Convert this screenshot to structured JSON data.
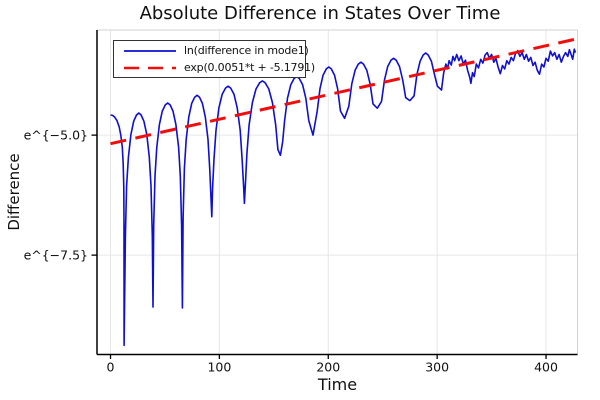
{
  "chart_data": {
    "type": "line",
    "title": "Absolute Difference in States Over Time",
    "xlabel": "Time",
    "ylabel": "Difference",
    "grid": true,
    "legend_position": "top-left",
    "xlim": [
      -12.4,
      428.9
    ],
    "ylim": [
      -9.57,
      -2.81
    ],
    "xticks": {
      "values": [
        0,
        100,
        200,
        300,
        400
      ],
      "labels": [
        "0",
        "100",
        "200",
        "300",
        "400"
      ]
    },
    "yticks": {
      "values": [
        -5.0,
        -7.5
      ],
      "labels": [
        "e^{−5.0}",
        "e^{−7.5}"
      ]
    },
    "colors": {
      "series1": "#0f0fd2",
      "series2": "#f20d0d",
      "grid": "#e6e6e6",
      "frame": "#d2d2d2",
      "spine": "#000000",
      "text": "#111111"
    },
    "series": [
      {
        "name": "ln(difference in mode1)",
        "color": "#0f0fd2",
        "style": "solid",
        "width": 1.6,
        "points": [
          [
            0,
            -4.58
          ],
          [
            2,
            -4.59
          ],
          [
            4,
            -4.63
          ],
          [
            6,
            -4.7
          ],
          [
            8,
            -4.83
          ],
          [
            9.5,
            -5.0
          ],
          [
            10.8,
            -5.25
          ],
          [
            11.7,
            -5.6
          ],
          [
            12.2,
            -6.1
          ],
          [
            12.4,
            -6.9
          ],
          [
            12.5,
            -9.38
          ],
          [
            13.7,
            -7.09
          ],
          [
            14.8,
            -6.06
          ],
          [
            16.4,
            -5.46
          ],
          [
            18.7,
            -4.99
          ],
          [
            21.3,
            -4.71
          ],
          [
            23.9,
            -4.58
          ],
          [
            26,
            -4.54
          ],
          [
            28.1,
            -4.58
          ],
          [
            30.7,
            -4.71
          ],
          [
            33.3,
            -4.99
          ],
          [
            35.6,
            -5.46
          ],
          [
            37.2,
            -6.06
          ],
          [
            38.4,
            -7.09
          ],
          [
            39,
            -8.58
          ],
          [
            39.7,
            -6.88
          ],
          [
            40.9,
            -5.85
          ],
          [
            42.5,
            -5.25
          ],
          [
            44.9,
            -4.78
          ],
          [
            47.6,
            -4.5
          ],
          [
            50.3,
            -4.37
          ],
          [
            52.5,
            -4.33
          ],
          [
            54.7,
            -4.37
          ],
          [
            57.4,
            -4.5
          ],
          [
            60.1,
            -4.78
          ],
          [
            62.5,
            -5.25
          ],
          [
            64.1,
            -5.85
          ],
          [
            65.3,
            -6.88
          ],
          [
            66,
            -8.6
          ],
          [
            66.7,
            -6.72
          ],
          [
            67.9,
            -5.69
          ],
          [
            69.5,
            -5.09
          ],
          [
            71.9,
            -4.62
          ],
          [
            74.6,
            -4.34
          ],
          [
            77.3,
            -4.21
          ],
          [
            79.5,
            -4.17
          ],
          [
            81.7,
            -4.21
          ],
          [
            84.4,
            -4.34
          ],
          [
            87.1,
            -4.62
          ],
          [
            89.5,
            -5.09
          ],
          [
            91.1,
            -5.69
          ],
          [
            93,
            -6.7
          ],
          [
            93.8,
            -6.1
          ],
          [
            95.1,
            -5.5
          ],
          [
            96.9,
            -4.9
          ],
          [
            99.6,
            -4.43
          ],
          [
            102.6,
            -4.15
          ],
          [
            105.6,
            -4.02
          ],
          [
            108,
            -3.98
          ],
          [
            110.4,
            -4.02
          ],
          [
            113.4,
            -4.15
          ],
          [
            116.4,
            -4.43
          ],
          [
            119.1,
            -4.9
          ],
          [
            120.9,
            -5.5
          ],
          [
            122.3,
            -6.1
          ],
          [
            123,
            -6.42
          ],
          [
            124.2,
            -5.9
          ],
          [
            125.3,
            -5.39
          ],
          [
            127.3,
            -4.79
          ],
          [
            130.3,
            -4.32
          ],
          [
            133.6,
            -4.04
          ],
          [
            136.9,
            -3.91
          ],
          [
            139.5,
            -3.87
          ],
          [
            142.1,
            -3.91
          ],
          [
            145.4,
            -4.04
          ],
          [
            148.7,
            -4.32
          ],
          [
            151.7,
            -4.79
          ],
          [
            153.7,
            -5.3
          ],
          [
            156,
            -5.42
          ],
          [
            158.1,
            -5.15
          ],
          [
            159.9,
            -4.7
          ],
          [
            162.6,
            -4.23
          ],
          [
            165.6,
            -3.95
          ],
          [
            168.6,
            -3.82
          ],
          [
            171,
            -3.78
          ],
          [
            173.4,
            -3.82
          ],
          [
            176.4,
            -3.95
          ],
          [
            179.4,
            -4.23
          ],
          [
            182.1,
            -4.7
          ],
          [
            186,
            -5.0
          ],
          [
            189.8,
            -4.5
          ],
          [
            192.4,
            -4.03
          ],
          [
            195.3,
            -3.75
          ],
          [
            198.2,
            -3.62
          ],
          [
            200.5,
            -3.58
          ],
          [
            202.8,
            -3.62
          ],
          [
            205.7,
            -3.75
          ],
          [
            208.6,
            -4.03
          ],
          [
            211.2,
            -4.5
          ],
          [
            215,
            -4.65
          ],
          [
            218.9,
            -4.4
          ],
          [
            221.6,
            -3.93
          ],
          [
            224.6,
            -3.65
          ],
          [
            227.6,
            -3.52
          ],
          [
            230,
            -3.48
          ],
          [
            232.4,
            -3.52
          ],
          [
            235.4,
            -3.65
          ],
          [
            238.4,
            -3.93
          ],
          [
            241.1,
            -4.35
          ],
          [
            245,
            -4.44
          ],
          [
            248.9,
            -4.3
          ],
          [
            251.6,
            -3.85
          ],
          [
            254.6,
            -3.57
          ],
          [
            257.6,
            -3.44
          ],
          [
            260,
            -3.4
          ],
          [
            262.4,
            -3.44
          ],
          [
            265.4,
            -3.57
          ],
          [
            268.4,
            -3.85
          ],
          [
            271.1,
            -4.22
          ],
          [
            275,
            -4.28
          ],
          [
            278.8,
            -4.18
          ],
          [
            281.4,
            -3.74
          ],
          [
            284.3,
            -3.46
          ],
          [
            287.2,
            -3.33
          ],
          [
            289.5,
            -3.29
          ],
          [
            291.8,
            -3.33
          ],
          [
            294.7,
            -3.46
          ],
          [
            297.6,
            -3.74
          ],
          [
            300.2,
            -3.98
          ],
          [
            304,
            -4.06
          ],
          [
            306,
            -3.7
          ],
          [
            308,
            -3.52
          ],
          [
            309.5,
            -3.62
          ],
          [
            311,
            -3.45
          ],
          [
            313,
            -3.54
          ],
          [
            314.5,
            -3.36
          ],
          [
            316,
            -3.45
          ],
          [
            318,
            -3.32
          ],
          [
            320,
            -3.45
          ],
          [
            322,
            -3.35
          ],
          [
            324,
            -3.52
          ],
          [
            326,
            -3.44
          ],
          [
            328,
            -3.65
          ],
          [
            330,
            -3.8
          ],
          [
            331,
            -3.92
          ],
          [
            332.5,
            -3.7
          ],
          [
            334,
            -3.78
          ],
          [
            336,
            -3.52
          ],
          [
            338,
            -3.6
          ],
          [
            340,
            -3.42
          ],
          [
            342,
            -3.5
          ],
          [
            344,
            -3.33
          ],
          [
            346,
            -3.28
          ],
          [
            348,
            -3.4
          ],
          [
            350,
            -3.32
          ],
          [
            352,
            -3.48
          ],
          [
            354,
            -3.4
          ],
          [
            356,
            -3.58
          ],
          [
            358,
            -3.72
          ],
          [
            360,
            -3.55
          ],
          [
            362,
            -3.62
          ],
          [
            364,
            -3.45
          ],
          [
            366,
            -3.52
          ],
          [
            368,
            -3.38
          ],
          [
            370,
            -3.45
          ],
          [
            372,
            -3.3
          ],
          [
            374,
            -3.24
          ],
          [
            376,
            -3.36
          ],
          [
            378,
            -3.28
          ],
          [
            380,
            -3.42
          ],
          [
            382,
            -3.32
          ],
          [
            384,
            -3.46
          ],
          [
            386,
            -3.38
          ],
          [
            388,
            -3.55
          ],
          [
            390,
            -3.48
          ],
          [
            392,
            -3.65
          ],
          [
            394,
            -3.73
          ],
          [
            396,
            -3.52
          ],
          [
            398,
            -3.58
          ],
          [
            400,
            -3.4
          ],
          [
            402,
            -3.46
          ],
          [
            404,
            -3.25
          ],
          [
            406,
            -3.35
          ],
          [
            408,
            -3.28
          ],
          [
            410,
            -3.42
          ],
          [
            412,
            -3.32
          ],
          [
            414,
            -3.48
          ],
          [
            416,
            -3.36
          ],
          [
            418,
            -3.28
          ],
          [
            420,
            -3.36
          ],
          [
            421.5,
            -3.22
          ],
          [
            423,
            -3.32
          ],
          [
            424.5,
            -3.42
          ],
          [
            426,
            -3.21
          ],
          [
            427,
            -3.28
          ]
        ]
      },
      {
        "name": "exp(0.0051*t + -5.1791)",
        "color": "#f20d0d",
        "style": "dashed",
        "width": 3,
        "dash": "16 9.5",
        "points": [
          [
            0,
            -5.1791
          ],
          [
            426,
            -3.0065
          ]
        ]
      }
    ]
  }
}
